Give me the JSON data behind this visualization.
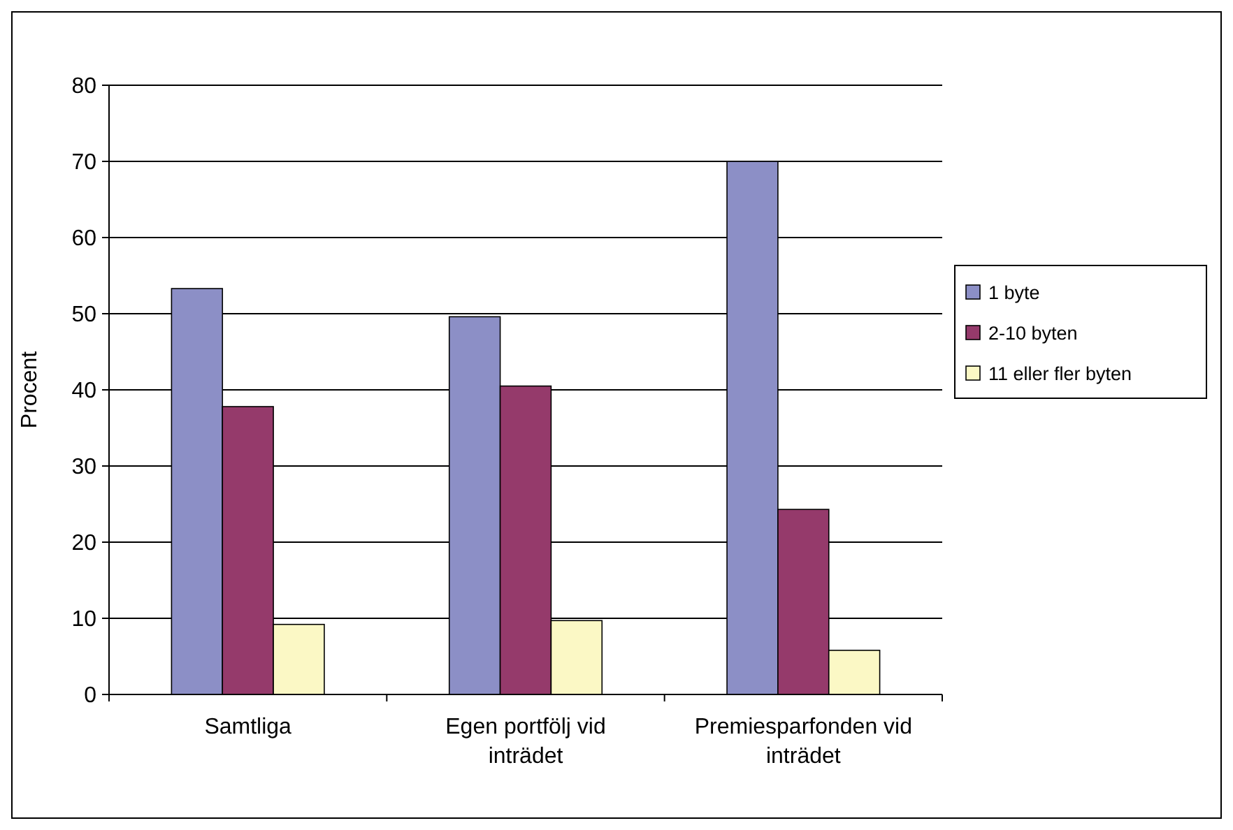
{
  "chart_data": {
    "type": "bar",
    "ylabel": "Procent",
    "categories": [
      "Samtliga",
      "Egen portfölj vid inträdet",
      "Premiesparfonden vid inträdet"
    ],
    "series": [
      {
        "name": "1 byte",
        "color": "#8c8fc6",
        "values": [
          53.3,
          49.6,
          70
        ]
      },
      {
        "name": "2-10 byten",
        "color": "#953a6b",
        "values": [
          37.8,
          40.5,
          24.3
        ]
      },
      {
        "name": "11 eller fler byten",
        "color": "#fbf8c5",
        "values": [
          9.2,
          9.7,
          5.8
        ]
      }
    ],
    "ylim": [
      0,
      80
    ],
    "yticks": [
      0,
      10,
      20,
      30,
      40,
      50,
      60,
      70,
      80
    ],
    "grid": "y",
    "legend": "right"
  }
}
